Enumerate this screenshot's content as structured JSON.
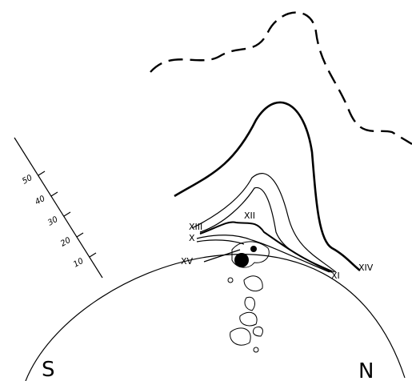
{
  "scale": {
    "ticks": [
      "10",
      "20",
      "30",
      "40",
      "50"
    ]
  },
  "labels": {
    "xiii": "XIII",
    "xii": "XII",
    "x": "X",
    "xv": "XV",
    "xi": "XI",
    "xiv": "XIV"
  },
  "directions": {
    "south": "S",
    "north": "N"
  }
}
